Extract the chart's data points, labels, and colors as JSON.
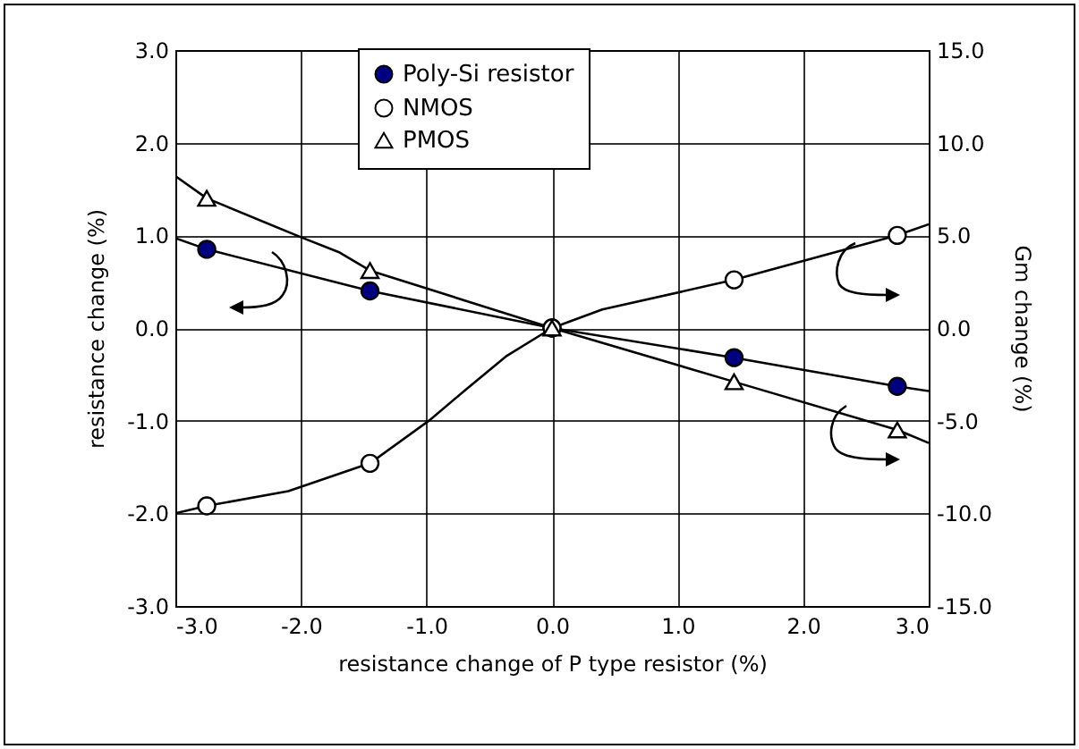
{
  "chart_data": {
    "type": "line",
    "xlabel": "resistance change of P type resistor (%)",
    "ylabel": "resistance change (%)",
    "y2label": "Gm change (%)",
    "xlim": [
      -3,
      3
    ],
    "xticks": [
      {
        "value": -3,
        "label": "-3.0"
      },
      {
        "value": -2,
        "label": "-2.0"
      },
      {
        "value": -1,
        "label": "-1.0"
      },
      {
        "value": 0,
        "label": "0.0"
      },
      {
        "value": 1,
        "label": "1.0"
      },
      {
        "value": 2,
        "label": "2.0"
      },
      {
        "value": 3,
        "label": "3.0"
      }
    ],
    "ylim": [
      -3,
      3
    ],
    "yticks": [
      {
        "value": -3,
        "label": "-3.0"
      },
      {
        "value": -2,
        "label": "-2.0"
      },
      {
        "value": -1,
        "label": "-1.0"
      },
      {
        "value": 0,
        "label": "0.0"
      },
      {
        "value": 1,
        "label": "1.0"
      },
      {
        "value": 2,
        "label": "2.0"
      },
      {
        "value": 3,
        "label": "3.0"
      }
    ],
    "y2lim": [
      -15,
      15
    ],
    "y2ticks": [
      {
        "value": -15,
        "label": "-15.0"
      },
      {
        "value": -10,
        "label": "-10.0"
      },
      {
        "value": -5,
        "label": "-5.0"
      },
      {
        "value": 0,
        "label": "0.0"
      },
      {
        "value": 5,
        "label": "5.0"
      },
      {
        "value": 10,
        "label": "10.0"
      },
      {
        "value": 15,
        "label": "15.0"
      }
    ],
    "grid": true,
    "legend": "top",
    "line_style": "solid",
    "series": [
      {
        "type": "line",
        "color": "#000000",
        "marker": "none",
        "x": [
          -3,
          -2.75,
          -1.45,
          0,
          1.45,
          2.75,
          3
        ],
        "values": [
          0.97,
          0.85,
          0.4,
          0,
          -0.32,
          -0.63,
          -0.68
        ]
      },
      {
        "type": "line",
        "color": "#000000",
        "marker": "none",
        "axis": "y2",
        "x": [
          -3,
          -2.75,
          -2.1,
          -1.45,
          -0.98,
          -0.7,
          -0.36,
          0,
          0.4,
          1.45,
          2.75,
          3
        ],
        "values": [
          -10.0,
          -9.6,
          -8.8,
          -7.3,
          -5.0,
          -3.4,
          -1.5,
          0,
          1.0,
          2.6,
          5.0,
          5.6
        ]
      },
      {
        "type": "line",
        "color": "#000000",
        "marker": "none",
        "axis": "y2",
        "x": [
          -3,
          -2.75,
          -2,
          -1.7,
          -1.45,
          0,
          1.45,
          2.75,
          3
        ],
        "values": [
          8.2,
          7.0,
          4.9,
          4.1,
          3.1,
          0,
          -2.9,
          -5.5,
          -6.2
        ]
      },
      {
        "name": "Poly-Si resistor",
        "type": "scatter",
        "color": "#000080",
        "marker": "circle",
        "x": [
          -2.75,
          -1.45,
          0,
          1.45,
          2.75
        ],
        "values": [
          0.85,
          0.4,
          0,
          -0.32,
          -0.63
        ]
      },
      {
        "name": "NMOS",
        "type": "scatter",
        "color": "#ffffff",
        "marker": "circle",
        "axis": "y2",
        "x": [
          -2.75,
          -1.45,
          0,
          1.45,
          2.75
        ],
        "values": [
          -9.6,
          -7.3,
          0,
          2.6,
          5.0
        ]
      },
      {
        "name": "PMOS",
        "type": "scatter",
        "color": "#ffffff",
        "marker": "triangle",
        "axis": "y2",
        "x": [
          -2.75,
          -1.45,
          0,
          1.45,
          2.75
        ],
        "values": [
          7.0,
          3.1,
          0,
          -2.9,
          -5.5
        ]
      }
    ]
  }
}
